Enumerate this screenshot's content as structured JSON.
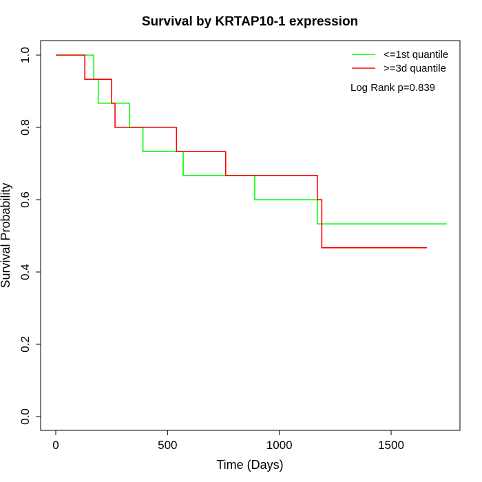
{
  "chart_data": {
    "type": "line",
    "title": "Survival by KRTAP10-1 expression",
    "xlabel": "Time (Days)",
    "ylabel": "Survival Probability",
    "xlim": [
      0,
      1800
    ],
    "ylim": [
      0,
      1.0
    ],
    "xticks": [
      0,
      500,
      1000,
      1500
    ],
    "yticks": [
      0.0,
      0.2,
      0.4,
      0.6,
      0.8,
      1.0
    ],
    "xtick_labels": [
      "0",
      "500",
      "1000",
      "1500"
    ],
    "ytick_labels": [
      "0.0",
      "0.2",
      "0.4",
      "0.6",
      "0.8",
      "1.0"
    ],
    "legend_position": "top-right",
    "grid": false,
    "annotation": "Log Rank p=0.839",
    "series": [
      {
        "name": "<=1st quantile",
        "color": "#00ff00",
        "step": true,
        "x": [
          0,
          170,
          190,
          330,
          390,
          570,
          760,
          890,
          1170,
          1750
        ],
        "y": [
          1.0,
          0.933,
          0.867,
          0.8,
          0.733,
          0.667,
          0.667,
          0.6,
          0.533,
          0.533
        ]
      },
      {
        "name": ">=3d quantile",
        "color": "#ff0000",
        "step": true,
        "x": [
          0,
          130,
          250,
          265,
          540,
          760,
          1170,
          1190,
          1660
        ],
        "y": [
          1.0,
          0.933,
          0.867,
          0.8,
          0.733,
          0.667,
          0.6,
          0.467,
          0.467
        ]
      }
    ]
  }
}
